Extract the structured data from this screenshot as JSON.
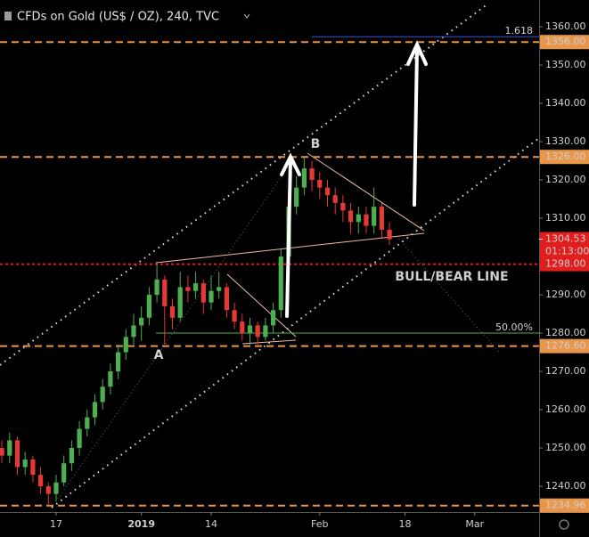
{
  "chart_data": {
    "type": "candlestick",
    "title": "CFDs on Gold (US$ / OZ), 240, TVC",
    "x": [
      -7,
      -6,
      -5,
      -4,
      -3,
      -2,
      -1,
      0,
      1,
      2,
      3,
      4,
      5,
      6,
      7,
      8,
      9,
      10,
      11,
      12,
      13,
      14,
      15,
      16,
      17,
      18,
      19,
      20,
      21,
      22,
      23,
      24,
      25,
      26,
      27,
      28,
      29,
      30,
      31,
      32,
      33,
      34,
      35,
      36,
      37,
      38,
      39,
      40,
      41,
      42,
      43
    ],
    "open": [
      1250,
      1248,
      1252,
      1245,
      1247,
      1243,
      1240,
      1238,
      1241,
      1246,
      1250,
      1255,
      1258,
      1262,
      1266,
      1270,
      1275,
      1279,
      1282,
      1284,
      1290,
      1294,
      1287,
      1284,
      1292,
      1291,
      1293,
      1288,
      1291,
      1292,
      1286,
      1283,
      1280,
      1282,
      1279,
      1282,
      1286,
      1300,
      1313,
      1318,
      1323,
      1320,
      1318,
      1316,
      1314,
      1312,
      1309,
      1311,
      1308,
      1313,
      1307
    ],
    "high": [
      1252,
      1254,
      1253,
      1249,
      1248,
      1245,
      1241,
      1243,
      1248,
      1252,
      1257,
      1260,
      1264,
      1268,
      1272,
      1277,
      1281,
      1285,
      1287,
      1292,
      1298,
      1295,
      1289,
      1296,
      1295,
      1296,
      1294,
      1295,
      1296,
      1293,
      1288,
      1285,
      1284,
      1283,
      1284,
      1288,
      1302,
      1315,
      1321,
      1326,
      1325,
      1322,
      1320,
      1318,
      1316,
      1314,
      1313,
      1313,
      1318,
      1314,
      1309
    ],
    "low": [
      1246,
      1246,
      1243,
      1243,
      1241,
      1238,
      1235,
      1236,
      1240,
      1244,
      1248,
      1253,
      1256,
      1260,
      1264,
      1268,
      1273,
      1277,
      1278,
      1282,
      1288,
      1277,
      1281,
      1283,
      1288,
      1289,
      1285,
      1286,
      1289,
      1284,
      1281,
      1278,
      1277,
      1277,
      1278,
      1280,
      1284,
      1298,
      1311,
      1316,
      1317,
      1315,
      1313,
      1311,
      1309,
      1306,
      1306,
      1306,
      1306,
      1305,
      1303
    ],
    "close": [
      1248,
      1252,
      1245,
      1247,
      1243,
      1240,
      1238,
      1241,
      1246,
      1250,
      1255,
      1258,
      1262,
      1266,
      1270,
      1275,
      1279,
      1282,
      1284,
      1290,
      1294,
      1287,
      1284,
      1292,
      1291,
      1293,
      1288,
      1291,
      1292,
      1286,
      1283,
      1280,
      1282,
      1279,
      1282,
      1286,
      1300,
      1313,
      1318,
      1323,
      1320,
      1318,
      1316,
      1314,
      1312,
      1309,
      1311,
      1308,
      1313,
      1307,
      1304.53
    ],
    "up_color": "#4caf50",
    "down_color": "#e53935",
    "xlim": [
      -7.24,
      62.3
    ],
    "xticks": [
      {
        "value": 0,
        "label": "17"
      },
      {
        "value": 11,
        "label": "2019"
      },
      {
        "value": 20,
        "label": "14"
      },
      {
        "value": 34,
        "label": "Feb"
      },
      {
        "value": 45,
        "label": "18"
      },
      {
        "value": 54,
        "label": "Mar"
      }
    ],
    "ylim": [
      1233.26,
      1366.98
    ],
    "yticks": [
      {
        "value": 1240,
        "label": "1240.00"
      },
      {
        "value": 1250,
        "label": "1250.00"
      },
      {
        "value": 1260,
        "label": "1260.00"
      },
      {
        "value": 1270,
        "label": "1270.00"
      },
      {
        "value": 1280,
        "label": "1280.00"
      },
      {
        "value": 1290,
        "label": "1290.00"
      },
      {
        "value": 1300,
        "label": "1300.00"
      },
      {
        "value": 1310,
        "label": "1310.00"
      },
      {
        "value": 1320,
        "label": "1320.00"
      },
      {
        "value": 1330,
        "label": "1330.00"
      },
      {
        "value": 1340,
        "label": "1340.00"
      },
      {
        "value": 1350,
        "label": "1350.00"
      },
      {
        "value": 1360,
        "label": "1360.00"
      }
    ],
    "grid": false,
    "levels": [
      {
        "value": 1356,
        "label": "1356.00",
        "color": "#e8964a"
      },
      {
        "value": 1326,
        "label": "1326.00",
        "color": "#e8964a"
      },
      {
        "value": 1298,
        "label": "1298.00",
        "color": "#e01e1e"
      },
      {
        "value": 1276.6,
        "label": "1276.60",
        "color": "#e8964a"
      },
      {
        "value": 1234.96,
        "label": "1234.96",
        "color": "#e8964a"
      }
    ],
    "fib_levels": [
      {
        "value": 1280,
        "label": "50.00%",
        "color": "#4caf50"
      },
      {
        "value": 1357.4,
        "label": "1.618",
        "color": "#3f51d8"
      }
    ],
    "last_price": {
      "value": 1304.53,
      "label": "1304.53",
      "countdown": "01:13:00",
      "color": "#e01e1e"
    },
    "annotations": [
      {
        "text": "A",
        "color": "#3fd0e0"
      },
      {
        "text": "B",
        "color": "#3fd0e0"
      },
      {
        "text": "BULL/BEAR LINE",
        "color": "#e01e1e"
      }
    ]
  }
}
